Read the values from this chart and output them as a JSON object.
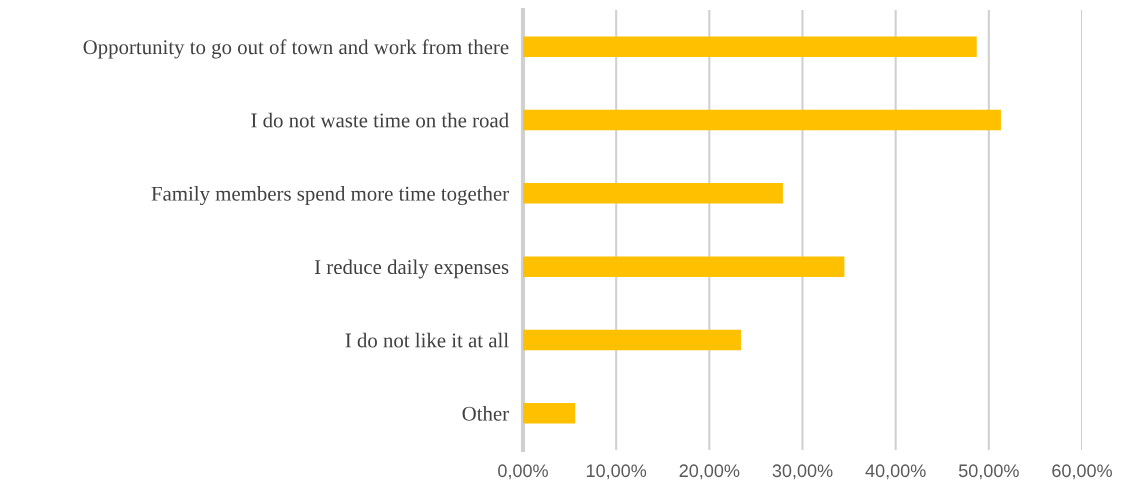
{
  "chart_data": {
    "type": "bar",
    "orientation": "horizontal",
    "categories": [
      "Opportunity to go out of town and work from there",
      "I do not waste time on the road",
      "Family members spend more time together",
      "I reduce daily expenses",
      "I do not like it at all",
      "Other"
    ],
    "values": [
      48.7,
      51.3,
      27.9,
      34.5,
      23.4,
      5.6
    ],
    "color": "#ffc000",
    "xlim": [
      0,
      60
    ],
    "xticks": [
      {
        "value": 0,
        "label": "0,00%"
      },
      {
        "value": 10,
        "label": "10,00%"
      },
      {
        "value": 20,
        "label": "20,00%"
      },
      {
        "value": 30,
        "label": "30,00%"
      },
      {
        "value": 40,
        "label": "40,00%"
      },
      {
        "value": 50,
        "label": "50,00%"
      },
      {
        "value": 60,
        "label": "60,00%"
      }
    ],
    "grid": "x"
  }
}
